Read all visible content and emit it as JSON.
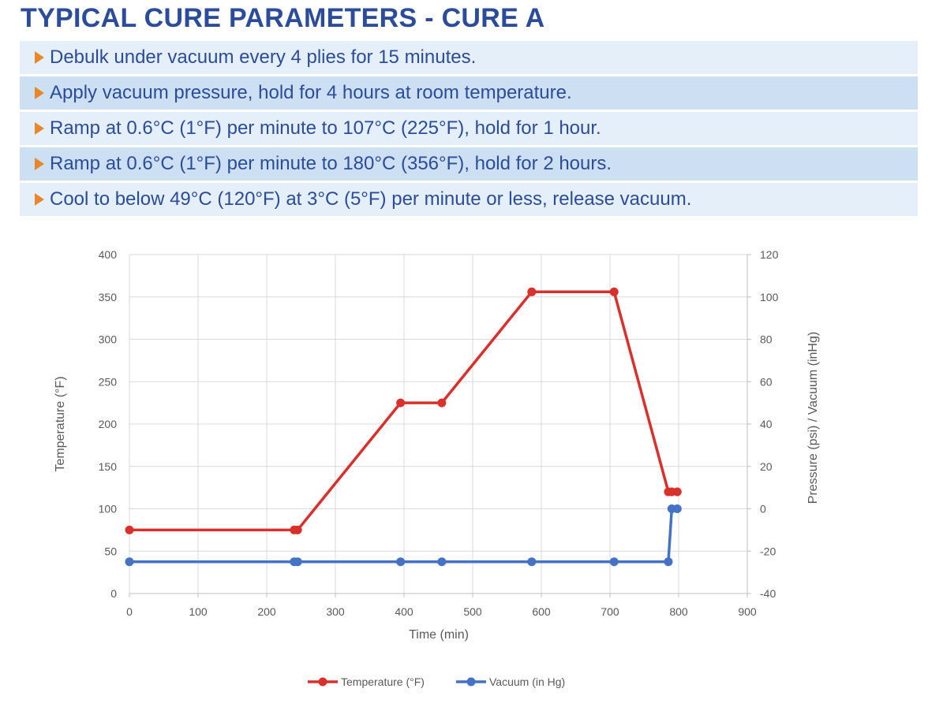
{
  "header": {
    "title": "TYPICAL CURE PARAMETERS - CURE A"
  },
  "steps": [
    "Debulk under vacuum every 4 plies for 15 minutes.",
    "Apply vacuum pressure, hold for 4 hours at room temperature.",
    "Ramp at 0.6°C (1°F) per minute to 107°C (225°F), hold for 1 hour.",
    "Ramp at 0.6°C (1°F) per minute to 180°C (356°F), hold for 2 hours.",
    "Cool to below 49°C (120°F) at 3°C (5°F) per minute or less, release vacuum."
  ],
  "colors": {
    "title": "#2b4c9b",
    "arrow": "#e8862a",
    "row_light": "#e4eff9",
    "row_dark": "#cde0f3",
    "temperature": "#d9302b",
    "vacuum": "#4472c4"
  },
  "icons": {
    "bullet": "orange-triangle-arrow-icon"
  },
  "chart_data": {
    "type": "line",
    "xlabel": "Time (min)",
    "ylabel": "Temperature (°F)",
    "y2label": "Pressure (psi) / Vacuum (inHg)",
    "xlim": [
      0,
      900
    ],
    "ylim": [
      0,
      400
    ],
    "y2lim": [
      -40,
      120
    ],
    "xticks": [
      0,
      100,
      200,
      300,
      400,
      500,
      600,
      700,
      800,
      900
    ],
    "yticks": [
      0,
      50,
      100,
      150,
      200,
      250,
      300,
      350,
      400
    ],
    "y2ticks": [
      -40,
      -20,
      0,
      20,
      40,
      60,
      80,
      100,
      120
    ],
    "grid": true,
    "legend_position": "bottom",
    "series": [
      {
        "name": "Temperature (°F)",
        "axis": "left",
        "points": [
          [
            0,
            75
          ],
          [
            240,
            75
          ],
          [
            245,
            75
          ],
          [
            395,
            225
          ],
          [
            455,
            225
          ],
          [
            586,
            356
          ],
          [
            706,
            356
          ],
          [
            785,
            120
          ],
          [
            790,
            120
          ],
          [
            798,
            120
          ]
        ]
      },
      {
        "name": "Vacuum (in Hg)",
        "axis": "right",
        "points": [
          [
            0,
            -25
          ],
          [
            240,
            -25
          ],
          [
            245,
            -25
          ],
          [
            395,
            -25
          ],
          [
            455,
            -25
          ],
          [
            586,
            -25
          ],
          [
            706,
            -25
          ],
          [
            785,
            -25
          ],
          [
            790,
            0
          ],
          [
            798,
            0
          ]
        ]
      }
    ]
  }
}
